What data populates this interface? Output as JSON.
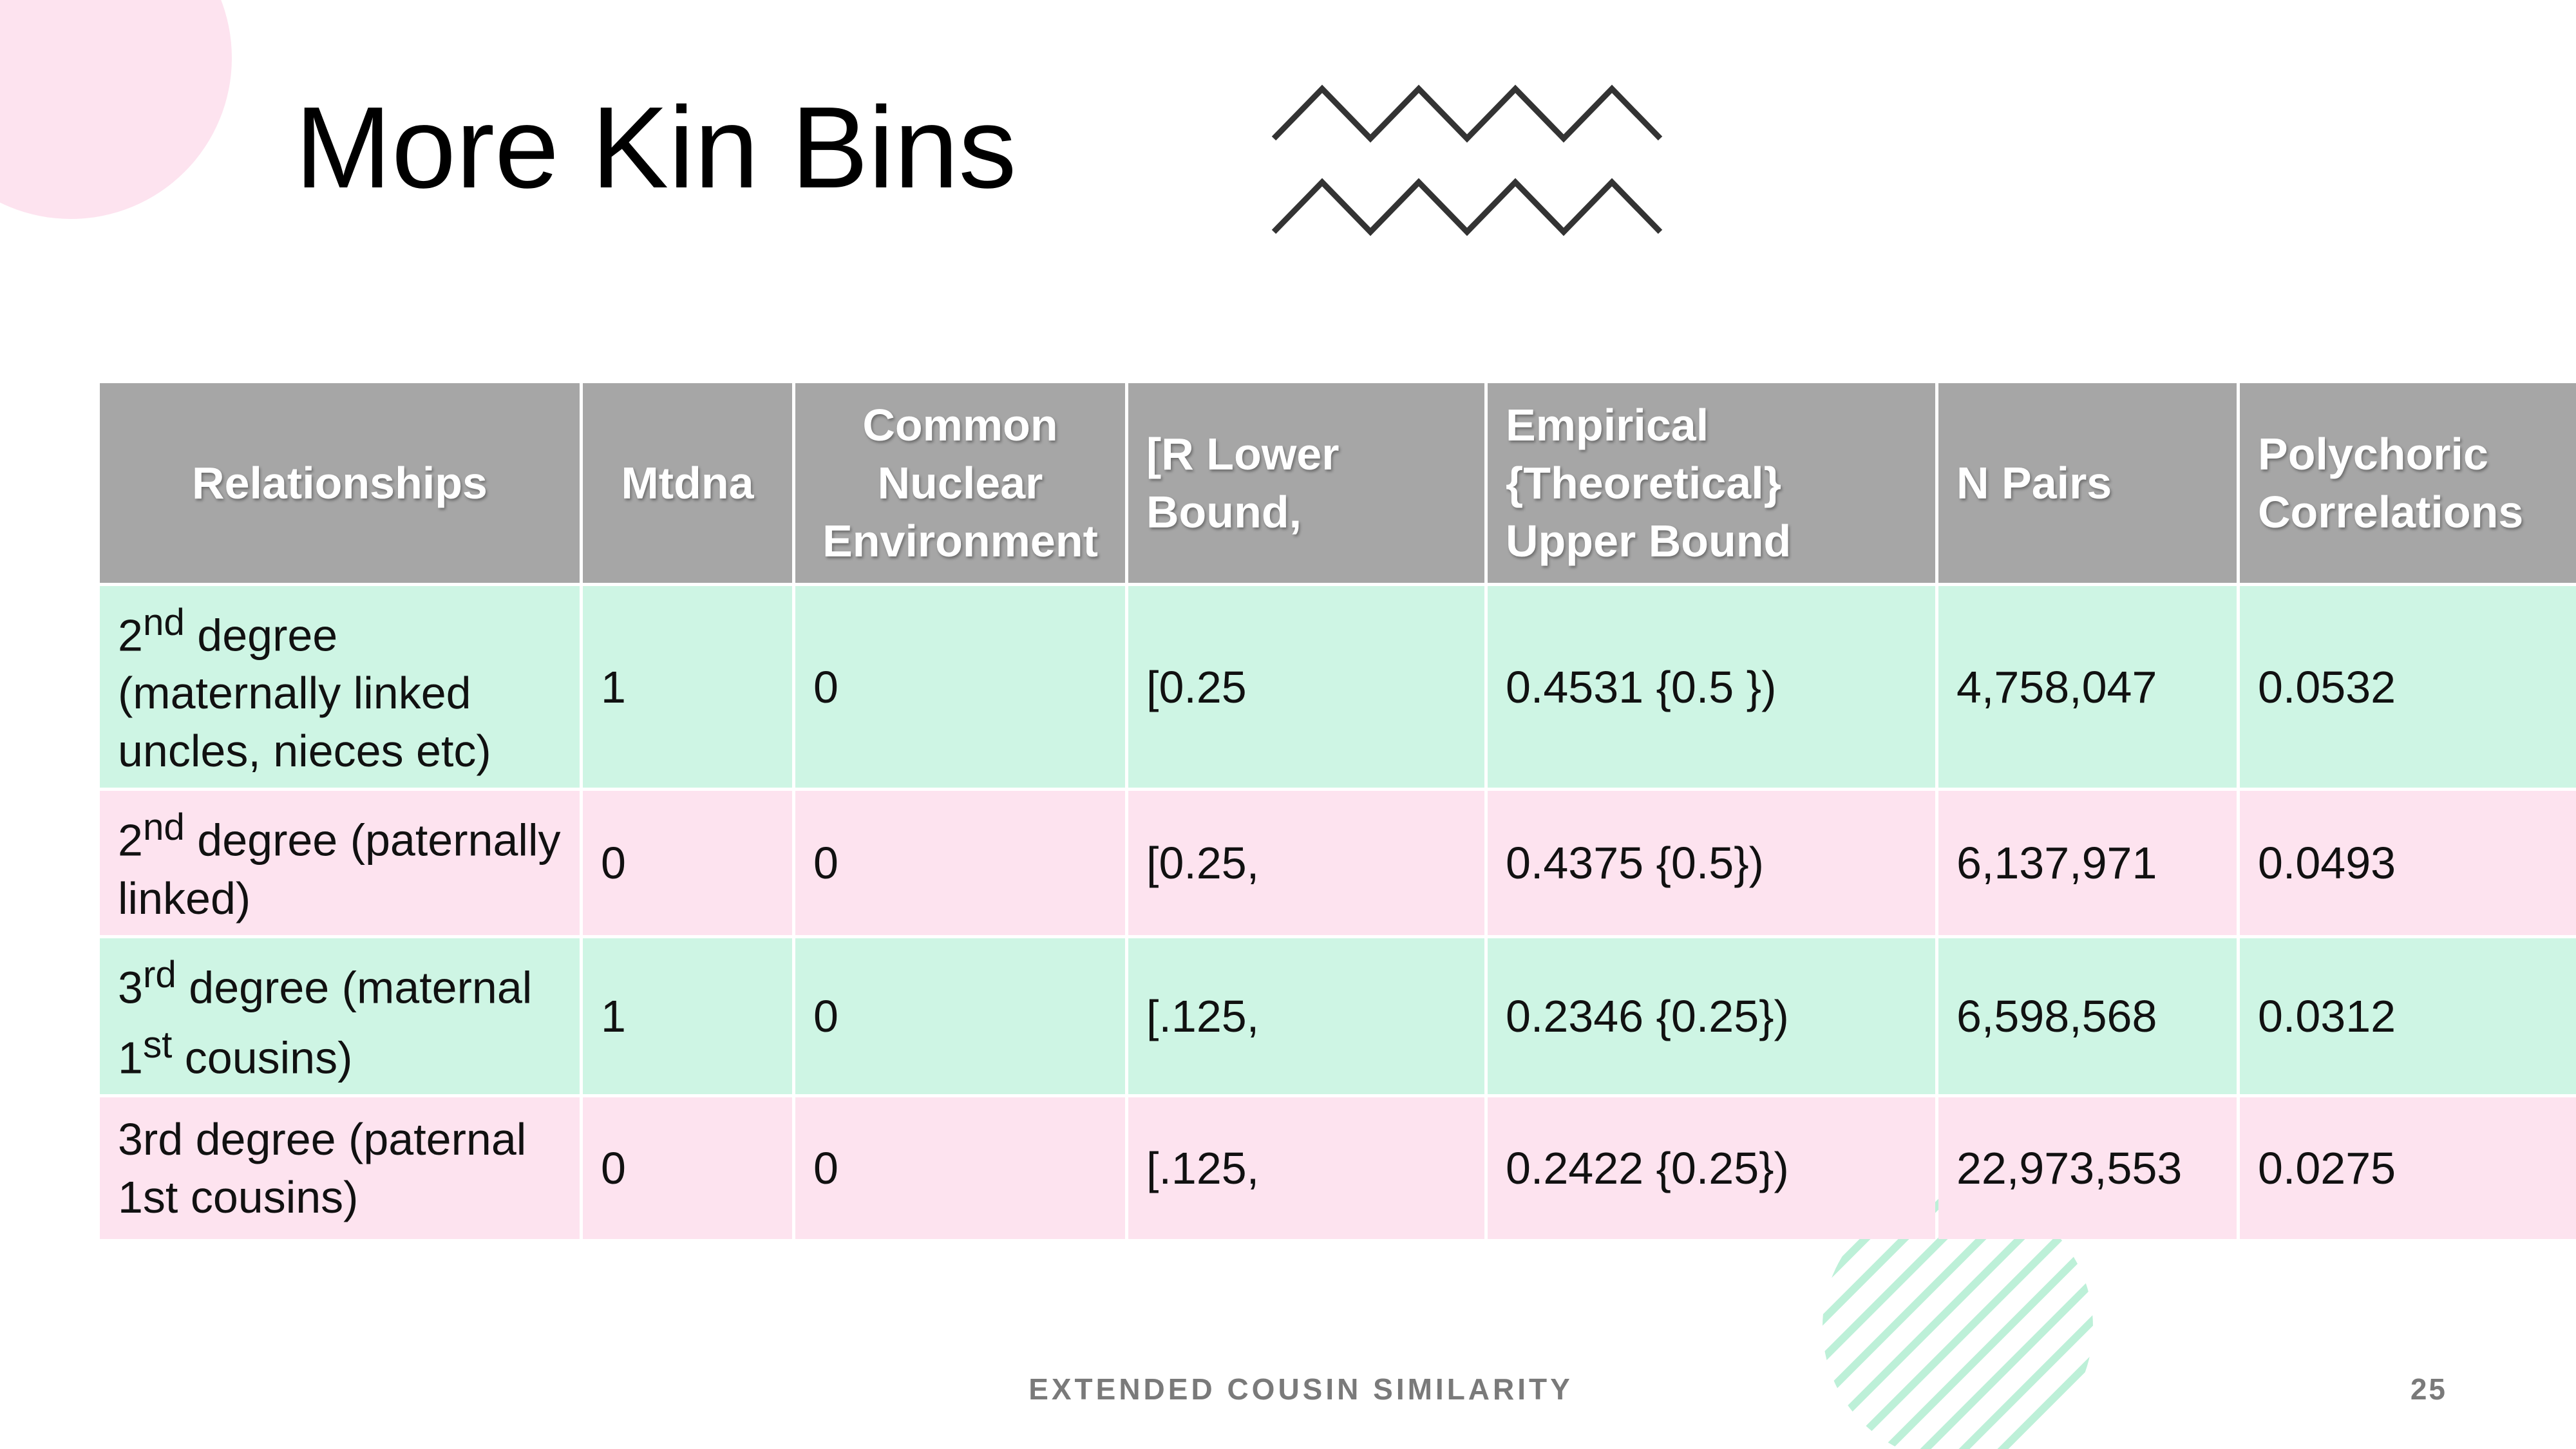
{
  "slide": {
    "title": "More Kin Bins",
    "footer": "EXTENDED COUSIN SIMILARITY",
    "page_number": "25"
  },
  "table": {
    "headers": [
      "Relationships",
      "Mtdna",
      "Common Nuclear Environment",
      "[R Lower Bound,",
      "Empirical {Theoretical} Upper Bound",
      "N Pairs",
      "Polychoric Correlations"
    ],
    "rows": [
      {
        "relationship": {
          "lead": "2",
          "sup": "nd",
          "text": " degree (maternally linked uncles, nieces etc)"
        },
        "mtdna": "1",
        "cne": "0",
        "lower": "[0.25",
        "upper": "0.4531 {0.5 })",
        "pairs": "4,758,047",
        "corr": "0.0532"
      },
      {
        "relationship": {
          "lead": "2",
          "sup": "nd",
          "text": " degree (paternally linked)"
        },
        "mtdna": "0",
        "cne": "0",
        "lower": "[0.25,",
        "upper": "0.4375 {0.5})",
        "pairs": "6,137,971",
        "corr": "0.0493"
      },
      {
        "relationship": {
          "lead": "3",
          "sup": "rd",
          "text": " degree (maternal ",
          "lead2": "1",
          "sup2": "st",
          "text2": " cousins)"
        },
        "mtdna": "1",
        "cne": "0",
        "lower": "[.125,",
        "upper": "0.2346 {0.25})",
        "pairs": "6,598,568",
        "corr": "0.0312"
      },
      {
        "relationship": {
          "text": "3rd degree (paternal 1st cousins)"
        },
        "mtdna": "0",
        "cne": "0",
        "lower": "[.125,",
        "upper": "0.2422 {0.25})",
        "pairs": "22,973,553",
        "corr": "0.0275"
      }
    ]
  },
  "colors": {
    "header_bg": "#a6a6a6",
    "row_green": "#cef5e4",
    "row_pink": "#fde3ef",
    "accent_pink": "#fde3ef",
    "accent_mint": "#bdf0d8"
  },
  "icons": {
    "zigzag": "zigzag-decoration-icon",
    "hatch": "hatched-circle-decoration-icon",
    "corner": "corner-circle-decoration"
  }
}
